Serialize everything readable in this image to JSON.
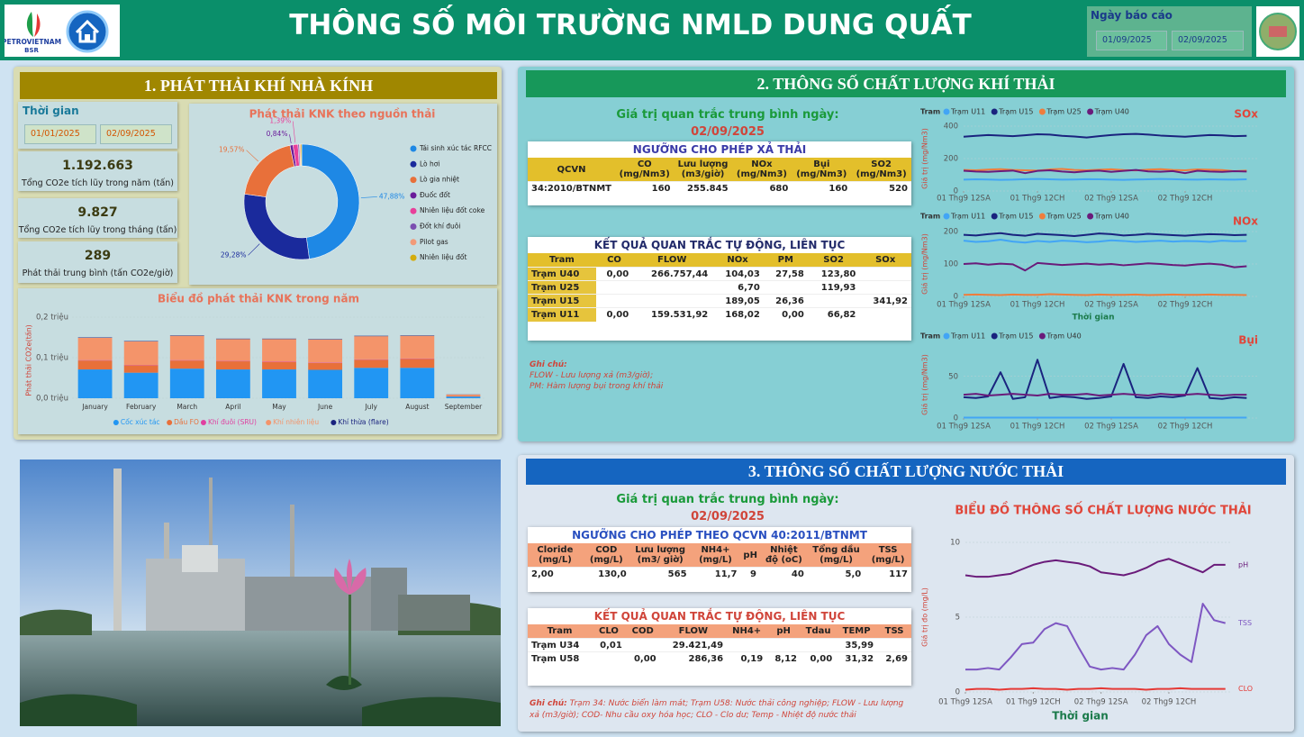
{
  "header": {
    "logo": "PETROVIETNAM",
    "logo_sub": "BSR",
    "title": "THÔNG SỐ MÔI TRƯỜNG NMLD DUNG QUẤT",
    "date_label": "Ngày báo cáo",
    "date_from": "01/09/2025",
    "date_to": "02/09/2025"
  },
  "ghg": {
    "title": "1. PHÁT THẢI KHÍ NHÀ KÍNH",
    "period_label": "Thời gian",
    "date_from": "01/01/2025",
    "date_to": "02/09/2025",
    "kpis": [
      {
        "value": "1.192.663",
        "label": "Tổng CO2e tích lũy trong năm (tấn)"
      },
      {
        "value": "9.827",
        "label": "Tổng CO2e tích lũy trong tháng (tấn)"
      },
      {
        "value": "289",
        "label": "Phát thải trung bình (tấn CO2e/giờ)"
      }
    ]
  },
  "gas": {
    "title": "2. THÔNG SỐ CHẤT LƯỢNG KHÍ THẢI",
    "avg_label": "Giá trị quan trắc trung bình ngày:",
    "avg_date": "02/09/2025",
    "limits": {
      "title": "NGƯỠNG CHO PHÉP XẢ THẢI",
      "columns": [
        "QCVN",
        "CO (mg/Nm3)",
        "Lưu lượng (m3/giờ)",
        "NOx (mg/Nm3)",
        "Bụi (mg/Nm3)",
        "SO2 (mg/Nm3)"
      ],
      "rows": [
        [
          "34:2010/BTNMT",
          "160",
          "255.845",
          "680",
          "160",
          "520"
        ]
      ]
    },
    "results": {
      "title": "KẾT QUẢ QUAN TRẮC TỰ ĐỘNG, LIÊN TỤC",
      "columns": [
        "Tram",
        "CO",
        "FLOW",
        "NOx",
        "PM",
        "SO2",
        "SOx"
      ],
      "rows": [
        [
          "Trạm U40",
          "0,00",
          "266.757,44",
          "104,03",
          "27,58",
          "123,80",
          null
        ],
        [
          "Trạm U25",
          null,
          null,
          "6,70",
          null,
          "119,93",
          null
        ],
        [
          "Trạm U15",
          null,
          null,
          "189,05",
          "26,36",
          null,
          "341,92"
        ],
        [
          "Trạm U11",
          "0,00",
          "159.531,92",
          "168,02",
          "0,00",
          "66,82",
          null
        ]
      ]
    },
    "notes": [
      "Ghi chú:",
      "FLOW - Lưu lượng xả (m3/giờ);",
      "PM: Hàm lượng bụi trong khí thải"
    ]
  },
  "water": {
    "title": "3. THÔNG SỐ CHẤT LƯỢNG NƯỚC THẢI",
    "avg_label": "Giá trị quan trắc trung bình ngày:",
    "avg_date": "02/09/2025",
    "limits": {
      "title": "NGƯỠNG CHO PHÉP THEO QCVN 40:2011/BTNMT",
      "columns": [
        "Cloride (mg/L)",
        "COD (mg/L)",
        "Lưu lượng (m3/ giờ)",
        "NH4+ (mg/L)",
        "pH",
        "Nhiệt độ (oC)",
        "Tổng dầu (mg/L)",
        "TSS (mg/L)"
      ],
      "rows": [
        [
          "2,00",
          "130,0",
          "565",
          "11,7",
          "9",
          "40",
          "5,0",
          "117"
        ]
      ]
    },
    "results": {
      "title": "KẾT QUẢ QUAN TRẮC TỰ ĐỘNG, LIÊN TỤC",
      "columns": [
        "Tram",
        "CLO",
        "COD",
        "FLOW",
        "NH4+",
        "pH",
        "Tdau",
        "TEMP",
        "TSS"
      ],
      "rows": [
        [
          "Trạm U34",
          "0,01",
          null,
          "29.421,49",
          null,
          null,
          null,
          "35,99",
          null
        ],
        [
          "Trạm U58",
          null,
          "0,00",
          "286,36",
          "0,19",
          "8,12",
          "0,00",
          "31,32",
          "2,69"
        ]
      ]
    },
    "note_label": "Ghi chú:",
    "note": "Trạm 34: Nước biển làm mát; Trạm U58: Nước thải công nghiệp; FLOW - Lưu lượng xả (m3/giờ);  COD- Nhu cầu oxy hóa học; CLO - Clo dư; Temp - Nhiệt độ nước thải"
  },
  "chart_data": [
    {
      "type": "pie",
      "title": "Phát thải KNK theo nguồn thải",
      "categories": [
        "Tái sinh xúc tác RFCC",
        "Lò hơi",
        "Lò gia nhiệt",
        "Đuốc đốt",
        "Nhiên liệu đốt coke",
        "Đốt khí đuôi",
        "Pilot gas",
        "Nhiên liệu đốt"
      ],
      "values": [
        47.88,
        29.28,
        19.57,
        0.84,
        1.39,
        0.4,
        0.34,
        0.3
      ],
      "value_labels": [
        "47,88%",
        "29,28%",
        "19,57%",
        "0,84%",
        "1,39%",
        null,
        null,
        null
      ],
      "colors": [
        "#1e88e5",
        "#1a2a9c",
        "#e8703a",
        "#6a1b9a",
        "#e8409a",
        "#7b4fb0",
        "#f29a78",
        "#d4ac0d"
      ]
    },
    {
      "type": "bar",
      "title": "Biểu đồ phát thải KNK trong năm",
      "y_label": "Phát thải CO2e(tấn)",
      "categories": [
        "January",
        "February",
        "March",
        "April",
        "May",
        "June",
        "July",
        "August",
        "September"
      ],
      "series": [
        {
          "name": "Cốc xúc tác",
          "color": "#2196f3",
          "values": [
            0.071,
            0.063,
            0.073,
            0.071,
            0.071,
            0.07,
            0.075,
            0.075,
            0.004
          ]
        },
        {
          "name": "Dầu FO",
          "color": "#e8703a",
          "values": [
            0.022,
            0.018,
            0.02,
            0.02,
            0.018,
            0.017,
            0.02,
            0.022,
            0.002
          ]
        },
        {
          "name": "Khí đuôi (SRU)",
          "color": "#e040a0",
          "values": [
            0.001,
            0.001,
            0.001,
            0.001,
            0.001,
            0.001,
            0.001,
            0.001,
            0.0002
          ]
        },
        {
          "name": "Khí nhiên liệu",
          "color": "#f4946a",
          "values": [
            0.055,
            0.058,
            0.06,
            0.054,
            0.056,
            0.057,
            0.057,
            0.056,
            0.003
          ]
        },
        {
          "name": "Khí thừa (flare)",
          "color": "#1a237e",
          "values": [
            0.001,
            0.001,
            0.001,
            0.001,
            0.001,
            0.001,
            0.001,
            0.001,
            0.0003
          ]
        }
      ],
      "ylim": [
        0,
        0.2
      ],
      "yticks": [
        {
          "value": 0,
          "label": "0,0 triệu"
        },
        {
          "value": 0.1,
          "label": "0,1 triệu"
        },
        {
          "value": 0.2,
          "label": "0,2 triệu"
        }
      ]
    },
    {
      "type": "line",
      "title": "SOx",
      "legend_title": "Tram",
      "y_label": "Giá trị (mg/Nm3)",
      "x": [
        0,
        2,
        4,
        6,
        8,
        10,
        12,
        14,
        16,
        18,
        20,
        22,
        24,
        26,
        28,
        30,
        32,
        34,
        36,
        38,
        40,
        42,
        44,
        46
      ],
      "series": [
        {
          "name": "Trạm U11",
          "color": "#42a5f5",
          "values": [
            70,
            72,
            71,
            69,
            70,
            73,
            74,
            72,
            70,
            71,
            73,
            72,
            70,
            69,
            71,
            72,
            74,
            73,
            71,
            70,
            72,
            71,
            70,
            72
          ]
        },
        {
          "name": "Trạm U15",
          "color": "#1a237e",
          "values": [
            335,
            340,
            345,
            342,
            338,
            344,
            350,
            348,
            340,
            336,
            330,
            338,
            345,
            350,
            352,
            348,
            342,
            338,
            335,
            340,
            345,
            343,
            338,
            340
          ]
        },
        {
          "name": "Trạm U25",
          "color": "#ef7d3c",
          "values": [
            130,
            128,
            132,
            135,
            130,
            128,
            126,
            133,
            136,
            130,
            128,
            131,
            134,
            129,
            127,
            132,
            135,
            130,
            128,
            133,
            131,
            129,
            122,
            126
          ]
        },
        {
          "name": "Trạm U40",
          "color": "#6a1b7a",
          "values": [
            125,
            120,
            118,
            122,
            126,
            110,
            124,
            128,
            120,
            115,
            122,
            126,
            118,
            124,
            130,
            121,
            119,
            123,
            110,
            125,
            120,
            118,
            122,
            120
          ]
        }
      ],
      "xlim": [
        0,
        48
      ],
      "xticks": [
        {
          "value": 0,
          "label": "01 Thg9 12SA"
        },
        {
          "value": 12,
          "label": "01 Thg9 12CH"
        },
        {
          "value": 24,
          "label": "02 Thg9 12SA"
        },
        {
          "value": 36,
          "label": "02 Thg9 12CH"
        }
      ],
      "ylim": [
        0,
        400
      ],
      "yticks": [
        0,
        200,
        400
      ]
    },
    {
      "type": "line",
      "title": "NOx",
      "legend_title": "Tram",
      "y_label": "Giá trị (mg/Nm3)",
      "x_label": "Thời gian",
      "x": [
        0,
        2,
        4,
        6,
        8,
        10,
        12,
        14,
        16,
        18,
        20,
        22,
        24,
        26,
        28,
        30,
        32,
        34,
        36,
        38,
        40,
        42,
        44,
        46
      ],
      "series": [
        {
          "name": "Trạm U11",
          "color": "#42a5f5",
          "values": [
            172,
            168,
            170,
            175,
            169,
            166,
            171,
            168,
            172,
            170,
            167,
            169,
            173,
            171,
            168,
            170,
            172,
            169,
            171,
            170,
            168,
            172,
            170,
            171
          ]
        },
        {
          "name": "Trạm U15",
          "color": "#1a237e",
          "values": [
            190,
            188,
            192,
            195,
            190,
            187,
            193,
            191,
            189,
            186,
            190,
            194,
            192,
            188,
            190,
            193,
            191,
            189,
            187,
            190,
            192,
            191,
            189,
            190
          ]
        },
        {
          "name": "Trạm U25",
          "color": "#ef7d3c",
          "values": [
            5,
            6,
            5,
            4,
            6,
            5,
            5,
            7,
            6,
            5,
            4,
            6,
            5,
            5,
            6,
            4,
            5,
            6,
            5,
            5,
            6,
            5,
            5,
            4
          ]
        },
        {
          "name": "Trạm U40",
          "color": "#6a1b7a",
          "values": [
            100,
            102,
            98,
            101,
            99,
            80,
            103,
            100,
            97,
            99,
            101,
            98,
            100,
            96,
            99,
            102,
            100,
            97,
            95,
            99,
            101,
            98,
            90,
            93
          ]
        }
      ],
      "xlim": [
        0,
        48
      ],
      "xticks": [
        {
          "value": 0,
          "label": "01 Thg9 12SA"
        },
        {
          "value": 12,
          "label": "01 Thg9 12CH"
        },
        {
          "value": 24,
          "label": "02 Thg9 12SA"
        },
        {
          "value": 36,
          "label": "02 Thg9 12CH"
        }
      ],
      "ylim": [
        0,
        200
      ],
      "yticks": [
        0,
        100,
        200
      ]
    },
    {
      "type": "line",
      "title": "Bụi",
      "legend_title": "Tram",
      "y_label": "Giá trị (mg/Nm3)",
      "x": [
        0,
        2,
        4,
        6,
        8,
        10,
        12,
        14,
        16,
        18,
        20,
        22,
        24,
        26,
        28,
        30,
        32,
        34,
        36,
        38,
        40,
        42,
        44,
        46
      ],
      "series": [
        {
          "name": "Trạm U11",
          "color": "#42a5f5",
          "values": [
            0.5,
            0.5,
            0.5,
            0.5,
            0.5,
            0.5,
            0.5,
            0.5,
            0.5,
            0.5,
            0.5,
            0.5,
            0.5,
            0.5,
            0.5,
            0.5,
            0.5,
            0.5,
            0.5,
            0.5,
            0.5,
            0.5,
            0.5,
            0.5
          ]
        },
        {
          "name": "Trạm U15",
          "color": "#1a237e",
          "values": [
            25,
            24,
            26,
            55,
            23,
            25,
            70,
            24,
            26,
            25,
            23,
            24,
            26,
            65,
            25,
            24,
            26,
            25,
            27,
            60,
            24,
            23,
            25,
            24
          ]
        },
        {
          "name": "Trạm U40",
          "color": "#6a1b7a",
          "values": [
            28,
            29,
            27,
            28,
            29,
            28,
            27,
            29,
            28,
            28,
            29,
            27,
            28,
            29,
            28,
            27,
            29,
            28,
            28,
            29,
            28,
            27,
            28,
            28
          ]
        }
      ],
      "xlim": [
        0,
        48
      ],
      "xticks": [
        {
          "value": 0,
          "label": "01 Thg9 12SA"
        },
        {
          "value": 12,
          "label": "01 Thg9 12CH"
        },
        {
          "value": 24,
          "label": "02 Thg9 12SA"
        },
        {
          "value": 36,
          "label": "02 Thg9 12CH"
        }
      ],
      "ylim": [
        0,
        80
      ],
      "yticks": [
        0,
        50
      ]
    },
    {
      "type": "line",
      "title": "BIỂU ĐỒ THÔNG SỐ CHẤT LƯỢNG NƯỚC THẢI",
      "y_label": "Giá trị đo (mg/L)",
      "x_label": "Thời gian",
      "x": [
        0,
        2,
        4,
        6,
        8,
        10,
        12,
        14,
        16,
        18,
        20,
        22,
        24,
        26,
        28,
        30,
        32,
        34,
        36,
        38,
        40,
        42,
        44,
        46
      ],
      "series": [
        {
          "name": "pH",
          "color": "#6a1b7a",
          "values": [
            7.8,
            7.7,
            7.7,
            7.8,
            7.9,
            8.2,
            8.5,
            8.7,
            8.8,
            8.7,
            8.6,
            8.4,
            8.0,
            7.9,
            7.8,
            8.0,
            8.3,
            8.7,
            8.9,
            8.6,
            8.3,
            8.0,
            8.5,
            8.5
          ]
        },
        {
          "name": "TSS",
          "color": "#7e57c2",
          "values": [
            1.5,
            1.5,
            1.6,
            1.5,
            2.3,
            3.2,
            3.3,
            4.2,
            4.6,
            4.4,
            3.0,
            1.7,
            1.5,
            1.6,
            1.5,
            2.5,
            3.8,
            4.4,
            3.2,
            2.5,
            2.0,
            5.9,
            4.8,
            4.6
          ]
        },
        {
          "name": "CLO",
          "color": "#e53935",
          "values": [
            0.15,
            0.2,
            0.2,
            0.15,
            0.2,
            0.2,
            0.25,
            0.2,
            0.2,
            0.15,
            0.2,
            0.2,
            0.25,
            0.2,
            0.2,
            0.2,
            0.15,
            0.2,
            0.2,
            0.25,
            0.2,
            0.2,
            0.2,
            0.2
          ]
        }
      ],
      "xlim": [
        0,
        47
      ],
      "xticks": [
        {
          "value": 0,
          "label": "01 Thg9 12SA"
        },
        {
          "value": 12,
          "label": "01 Thg9 12CH"
        },
        {
          "value": 24,
          "label": "02 Thg9 12SA"
        },
        {
          "value": 36,
          "label": "02 Thg9 12CH"
        }
      ],
      "ylim": [
        0,
        10
      ],
      "yticks": [
        0,
        5,
        10
      ]
    }
  ]
}
